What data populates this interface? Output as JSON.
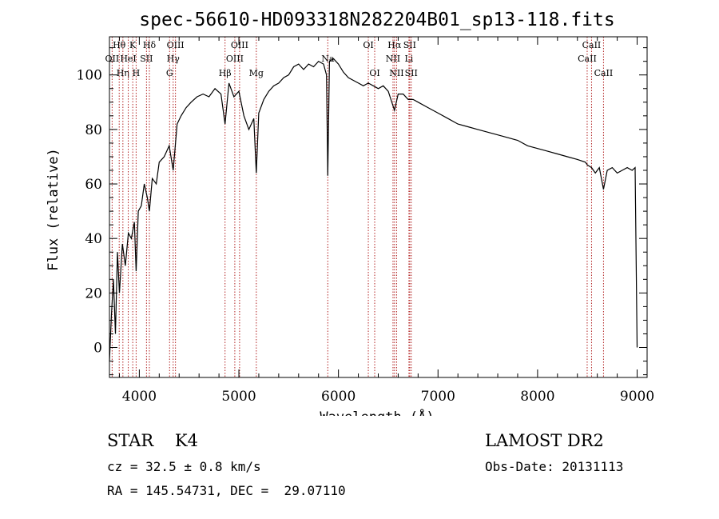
{
  "chart_data": {
    "type": "line",
    "title": "spec-56610-HD093318N282204B01_sp13-118.fits",
    "xlabel": "Wavelength (Å)",
    "ylabel": "Flux (relative)",
    "xlim": [
      3700,
      9100
    ],
    "ylim": [
      -11,
      114
    ],
    "xticks": [
      4000,
      5000,
      6000,
      7000,
      8000,
      9000
    ],
    "yticks": [
      0,
      20,
      40,
      60,
      80,
      100
    ],
    "grid": false,
    "series": [
      {
        "x": [
          3700,
          3720,
          3740,
          3760,
          3780,
          3800,
          3830,
          3860,
          3890,
          3920,
          3950,
          3968,
          3990,
          4020,
          4050,
          4080,
          4101,
          4130,
          4170,
          4200,
          4250,
          4300,
          4340,
          4380,
          4420,
          4470,
          4520,
          4580,
          4640,
          4700,
          4760,
          4820,
          4861,
          4900,
          4950,
          5000,
          5050,
          5100,
          5150,
          5175,
          5200,
          5250,
          5300,
          5350,
          5400,
          5450,
          5500,
          5550,
          5600,
          5650,
          5700,
          5750,
          5800,
          5850,
          5880,
          5893,
          5910,
          5950,
          6000,
          6050,
          6100,
          6150,
          6200,
          6250,
          6300,
          6350,
          6400,
          6450,
          6500,
          6563,
          6600,
          6650,
          6700,
          6750,
          6800,
          6900,
          7000,
          7100,
          7200,
          7300,
          7400,
          7500,
          7600,
          7700,
          7800,
          7900,
          8000,
          8100,
          8200,
          8300,
          8400,
          8480,
          8500,
          8542,
          8580,
          8620,
          8662,
          8700,
          8750,
          8800,
          8850,
          8900,
          8950,
          8980,
          9000
        ],
        "y": [
          -5,
          12,
          25,
          5,
          35,
          20,
          38,
          30,
          42,
          40,
          46,
          28,
          50,
          52,
          60,
          55,
          50,
          62,
          60,
          68,
          70,
          74,
          65,
          82,
          85,
          88,
          90,
          92,
          93,
          92,
          95,
          93,
          82,
          97,
          92,
          94,
          85,
          80,
          84,
          64,
          86,
          91,
          94,
          96,
          97,
          99,
          100,
          103,
          104,
          102,
          104,
          103,
          105,
          104,
          100,
          63,
          105,
          106,
          104,
          101,
          99,
          98,
          97,
          96,
          97,
          96,
          95,
          96,
          94,
          87,
          93,
          93,
          91,
          91,
          90,
          88,
          86,
          84,
          82,
          81,
          80,
          79,
          78,
          77,
          76,
          74,
          73,
          72,
          71,
          70,
          69,
          68,
          67,
          66,
          64,
          66,
          58,
          65,
          66,
          64,
          65,
          66,
          65,
          66,
          0
        ]
      }
    ],
    "lines": [
      {
        "name": "Hθ",
        "x": 3798,
        "row": 0
      },
      {
        "name": "OII",
        "x": 3727,
        "row": 1
      },
      {
        "name": "Hη",
        "x": 3835,
        "row": 2
      },
      {
        "name": "K",
        "x": 3934,
        "row": 0
      },
      {
        "name": "HeI",
        "x": 3889,
        "row": 1
      },
      {
        "name": "H",
        "x": 3968,
        "row": 2
      },
      {
        "name": "Hδ",
        "x": 4101,
        "row": 0
      },
      {
        "name": "SII",
        "x": 4072,
        "row": 1
      },
      {
        "name": "OIII",
        "x": 4363,
        "row": 0
      },
      {
        "name": "Hγ",
        "x": 4340,
        "row": 1
      },
      {
        "name": "G",
        "x": 4304,
        "row": 2
      },
      {
        "name": "OIII",
        "x": 5007,
        "row": 0
      },
      {
        "name": "OIII",
        "x": 4959,
        "row": 1
      },
      {
        "name": "Hβ",
        "x": 4861,
        "row": 2
      },
      {
        "name": "Mg",
        "x": 5175,
        "row": 2
      },
      {
        "name": "Na",
        "x": 5893,
        "row": 1
      },
      {
        "name": "OI",
        "x": 6300,
        "row": 0
      },
      {
        "name": "OI",
        "x": 6364,
        "row": 2
      },
      {
        "name": "Hα",
        "x": 6563,
        "row": 0
      },
      {
        "name": "SII",
        "x": 6716,
        "row": 0
      },
      {
        "name": "NII",
        "x": 6548,
        "row": 1
      },
      {
        "name": "Li",
        "x": 6708,
        "row": 1
      },
      {
        "name": "NII",
        "x": 6584,
        "row": 2
      },
      {
        "name": "SII",
        "x": 6731,
        "row": 2
      },
      {
        "name": "CaII",
        "x": 8542,
        "row": 0
      },
      {
        "name": "CaII",
        "x": 8498,
        "row": 1
      },
      {
        "name": "CaII",
        "x": 8662,
        "row": 2
      }
    ]
  },
  "info": {
    "class_text": "STAR    K4",
    "cz_text": "cz = 32.5 ± 0.8 km/s",
    "radec_text": "RA = 145.54731, DEC =  29.07110",
    "survey_text": "LAMOST DR2",
    "obsdate_text": "Obs-Date: 20131113"
  },
  "colors": {
    "spectrum": "#000000",
    "line_markers": "#b22222",
    "axes": "#000000"
  }
}
